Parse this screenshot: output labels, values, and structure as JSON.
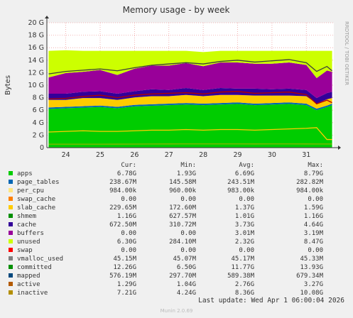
{
  "chart_data": {
    "type": "area",
    "title": "Memory usage - by week",
    "ylabel": "Bytes",
    "side_label": "RRDTOOL / TOBI OETIKER",
    "ylim": [
      0,
      20
    ],
    "y_unit": "G",
    "y_ticks": [
      "0",
      "2 G",
      "4 G",
      "6 G",
      "8 G",
      "10 G",
      "12 G",
      "14 G",
      "16 G",
      "18 G",
      "20 G"
    ],
    "x_ticks": [
      "24",
      "25",
      "26",
      "27",
      "28",
      "29",
      "30",
      "31"
    ],
    "x_range_days": [
      23.45,
      31.8
    ],
    "total_ram_g": 15.5,
    "stack_order": [
      "apps",
      "page_tables",
      "slab_cache",
      "swap_cache",
      "shmem",
      "cache",
      "unused"
    ],
    "x": [
      23.5,
      24.0,
      24.5,
      25.0,
      25.5,
      26.0,
      26.5,
      27.0,
      27.5,
      28.0,
      28.5,
      29.0,
      29.5,
      30.0,
      30.5,
      31.0,
      31.3,
      31.6,
      31.75
    ],
    "series": [
      {
        "name": "apps",
        "color": "#00cc00",
        "values": [
          6.2,
          6.3,
          6.4,
          6.5,
          6.3,
          6.6,
          6.7,
          6.8,
          6.9,
          6.8,
          6.9,
          7.0,
          6.8,
          6.9,
          7.0,
          6.8,
          6.0,
          6.5,
          6.8
        ]
      },
      {
        "name": "page_tables",
        "color": "#0066b3",
        "values": [
          0.24,
          0.24,
          0.24,
          0.24,
          0.24,
          0.24,
          0.24,
          0.24,
          0.24,
          0.24,
          0.24,
          0.24,
          0.24,
          0.24,
          0.24,
          0.24,
          0.24,
          0.24,
          0.24
        ]
      },
      {
        "name": "slab_cache",
        "color": "#ffcc00",
        "values": [
          1.2,
          1.1,
          1.3,
          1.2,
          1.1,
          1.2,
          1.3,
          1.2,
          1.3,
          1.2,
          1.3,
          1.2,
          1.3,
          1.2,
          1.1,
          1.2,
          0.8,
          1.0,
          0.9
        ]
      },
      {
        "name": "swap_cache",
        "color": "#ff8000",
        "values": [
          0,
          0,
          0,
          0,
          0,
          0,
          0,
          0,
          0,
          0,
          0,
          0,
          0,
          0,
          0,
          0,
          0,
          0,
          0
        ]
      },
      {
        "name": "shmem",
        "color": "#330099",
        "values": [
          1.0,
          1.0,
          1.0,
          1.1,
          1.0,
          1.0,
          1.1,
          1.0,
          1.1,
          1.0,
          1.1,
          1.0,
          1.1,
          1.0,
          1.1,
          1.0,
          0.9,
          1.0,
          1.0
        ]
      },
      {
        "name": "cache",
        "color": "#990099",
        "values": [
          2.6,
          3.3,
          3.2,
          3.4,
          3.0,
          3.6,
          3.8,
          3.9,
          4.0,
          3.8,
          4.1,
          4.2,
          4.0,
          4.1,
          4.2,
          4.0,
          3.2,
          3.6,
          3.2
        ]
      },
      {
        "name": "unused",
        "color": "#ccff00",
        "values": [
          4.26,
          3.66,
          3.36,
          3.06,
          3.86,
          2.86,
          2.36,
          2.36,
          1.96,
          2.26,
          1.86,
          1.86,
          2.06,
          2.06,
          1.86,
          2.26,
          4.36,
          3.16,
          3.36
        ]
      }
    ],
    "lines": [
      {
        "name": "committed",
        "color": "#3d3d3d",
        "values": [
          11.8,
          12.2,
          12.4,
          12.6,
          12.3,
          12.8,
          13.2,
          13.4,
          13.6,
          13.4,
          13.8,
          14.0,
          13.7,
          13.9,
          14.1,
          13.6,
          12.2,
          13.0,
          12.3
        ]
      },
      {
        "name": "active",
        "color": "#ffcc00",
        "values": [
          2.5,
          2.6,
          2.7,
          2.6,
          2.6,
          2.7,
          2.8,
          2.8,
          2.9,
          2.8,
          2.9,
          2.9,
          2.8,
          2.9,
          3.0,
          3.1,
          3.2,
          1.3,
          1.3
        ]
      },
      {
        "name": "mapped",
        "color": "#8fb300",
        "values": [
          0.55,
          0.55,
          0.55,
          0.55,
          0.56,
          0.57,
          0.58,
          0.59,
          0.6,
          0.6,
          0.6,
          0.6,
          0.59,
          0.6,
          0.6,
          0.59,
          0.58,
          0.58,
          0.58
        ]
      },
      {
        "name": "inactive",
        "color": "#b30000",
        "values": [
          7.8,
          7.9,
          8.2,
          8.4,
          8.0,
          8.4,
          8.6,
          8.7,
          8.8,
          8.6,
          8.9,
          9.0,
          8.7,
          8.8,
          8.9,
          8.5,
          7.0,
          7.6,
          7.2
        ]
      }
    ]
  },
  "legend": {
    "headers": [
      "Cur:",
      "Min:",
      "Avg:",
      "Max:"
    ],
    "rows": [
      {
        "name": "apps",
        "color": "#00cc00",
        "cur": "6.78G",
        "min": "1.93G",
        "avg": "6.69G",
        "max": "8.79G"
      },
      {
        "name": "page_tables",
        "color": "#0066b3",
        "cur": "238.67M",
        "min": "145.58M",
        "avg": "243.51M",
        "max": "282.82M"
      },
      {
        "name": "per_cpu",
        "color": "#ffe680",
        "cur": "984.00k",
        "min": "960.00k",
        "avg": "983.00k",
        "max": "984.00k"
      },
      {
        "name": "swap_cache",
        "color": "#ff8000",
        "cur": "0.00",
        "min": "0.00",
        "avg": "0.00",
        "max": "0.00"
      },
      {
        "name": "slab_cache",
        "color": "#ffcc00",
        "cur": "229.65M",
        "min": "172.60M",
        "avg": "1.37G",
        "max": "1.59G"
      },
      {
        "name": "shmem",
        "color": "#008f00",
        "cur": "1.16G",
        "min": "627.57M",
        "avg": "1.01G",
        "max": "1.16G"
      },
      {
        "name": "cache",
        "color": "#330099",
        "cur": "672.50M",
        "min": "310.72M",
        "avg": "3.73G",
        "max": "4.64G"
      },
      {
        "name": "buffers",
        "color": "#990099",
        "cur": "0.00",
        "min": "0.00",
        "avg": "3.01M",
        "max": "3.19M"
      },
      {
        "name": "unused",
        "color": "#ccff00",
        "cur": "6.30G",
        "min": "284.10M",
        "avg": "2.32G",
        "max": "8.47G"
      },
      {
        "name": "swap",
        "color": "#ff0000",
        "cur": "0.00",
        "min": "0.00",
        "avg": "0.00",
        "max": "0.00"
      },
      {
        "name": "vmalloc_used",
        "color": "#808080",
        "cur": "45.15M",
        "min": "45.07M",
        "avg": "45.17M",
        "max": "45.33M"
      },
      {
        "name": "committed",
        "color": "#008f00",
        "cur": "12.26G",
        "min": "6.50G",
        "avg": "11.77G",
        "max": "13.93G"
      },
      {
        "name": "mapped",
        "color": "#00487d",
        "cur": "576.19M",
        "min": "297.70M",
        "avg": "589.38M",
        "max": "679.34M"
      },
      {
        "name": "active",
        "color": "#b35a00",
        "cur": "1.29G",
        "min": "1.04G",
        "avg": "2.76G",
        "max": "3.27G"
      },
      {
        "name": "inactive",
        "color": "#b38f00",
        "cur": "7.21G",
        "min": "4.24G",
        "avg": "8.36G",
        "max": "10.08G"
      }
    ]
  },
  "footer": {
    "last_update": "Last update: Wed Apr  1 06:00:04 2026",
    "version": "Munin 2.0.69"
  }
}
